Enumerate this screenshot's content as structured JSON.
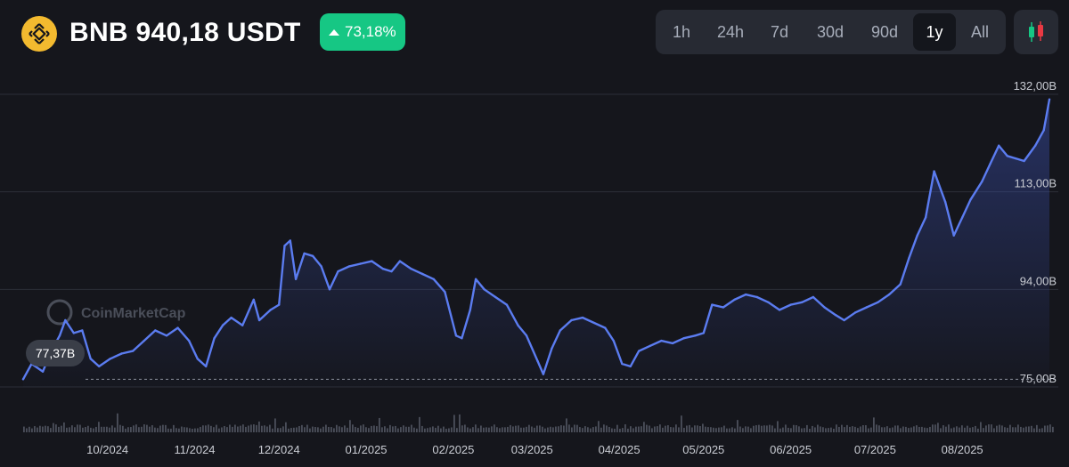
{
  "header": {
    "coin_symbol": "BNB",
    "title": "BNB 940,18 USDT",
    "change": "73,18%",
    "change_color": "#16c784",
    "brand_color": "#f3ba2f"
  },
  "time_ranges": [
    {
      "label": "1h",
      "active": false
    },
    {
      "label": "24h",
      "active": false
    },
    {
      "label": "7d",
      "active": false
    },
    {
      "label": "30d",
      "active": false
    },
    {
      "label": "90d",
      "active": false
    },
    {
      "label": "1y",
      "active": true
    },
    {
      "label": "All",
      "active": false
    }
  ],
  "candle_toggle_icon": "candlestick-icon",
  "watermark": "CoinMarketCap",
  "current_label": "77,37B",
  "chart_data": {
    "type": "area",
    "title": "",
    "xlabel": "",
    "ylabel": "",
    "y_unit": "B",
    "ylim": [
      75,
      132
    ],
    "y_ticks": [
      {
        "value": 132,
        "label": "132,00B"
      },
      {
        "value": 113,
        "label": "113,00B"
      },
      {
        "value": 94,
        "label": "94,00B"
      },
      {
        "value": 75,
        "label": "75,00B"
      }
    ],
    "grid": true,
    "line_color": "#5b7cf0",
    "x_ticks": [
      {
        "date": "2024-10-01",
        "label": "10/2024"
      },
      {
        "date": "2024-11-01",
        "label": "11/2024"
      },
      {
        "date": "2024-12-01",
        "label": "12/2024"
      },
      {
        "date": "2025-01-01",
        "label": "01/2025"
      },
      {
        "date": "2025-02-01",
        "label": "02/2025"
      },
      {
        "date": "2025-03-01",
        "label": "03/2025"
      },
      {
        "date": "2025-04-01",
        "label": "04/2025"
      },
      {
        "date": "2025-05-01",
        "label": "05/2025"
      },
      {
        "date": "2025-06-01",
        "label": "06/2025"
      },
      {
        "date": "2025-07-01",
        "label": "07/2025"
      },
      {
        "date": "2025-08-01",
        "label": "08/2025"
      }
    ],
    "series": [
      {
        "values": [
          [
            "2024-09-01",
            76.5
          ],
          [
            "2024-09-04",
            79.5
          ],
          [
            "2024-09-08",
            78.0
          ],
          [
            "2024-09-11",
            82.0
          ],
          [
            "2024-09-14",
            85.0
          ],
          [
            "2024-09-16",
            88.0
          ],
          [
            "2024-09-19",
            85.5
          ],
          [
            "2024-09-22",
            86.0
          ],
          [
            "2024-09-25",
            80.5
          ],
          [
            "2024-09-28",
            79.0
          ],
          [
            "2024-10-02",
            80.5
          ],
          [
            "2024-10-06",
            81.5
          ],
          [
            "2024-10-10",
            82.0
          ],
          [
            "2024-10-14",
            84.0
          ],
          [
            "2024-10-18",
            86.0
          ],
          [
            "2024-10-22",
            85.0
          ],
          [
            "2024-10-26",
            86.5
          ],
          [
            "2024-10-30",
            84.0
          ],
          [
            "2024-11-02",
            80.5
          ],
          [
            "2024-11-05",
            79.0
          ],
          [
            "2024-11-08",
            84.5
          ],
          [
            "2024-11-11",
            87.0
          ],
          [
            "2024-11-14",
            88.5
          ],
          [
            "2024-11-18",
            87.0
          ],
          [
            "2024-11-22",
            92.0
          ],
          [
            "2024-11-24",
            88.0
          ],
          [
            "2024-11-28",
            90.0
          ],
          [
            "2024-12-01",
            91.0
          ],
          [
            "2024-12-03",
            102.5
          ],
          [
            "2024-12-05",
            103.5
          ],
          [
            "2024-12-07",
            96.0
          ],
          [
            "2024-12-10",
            101.0
          ],
          [
            "2024-12-13",
            100.5
          ],
          [
            "2024-12-16",
            98.5
          ],
          [
            "2024-12-19",
            94.0
          ],
          [
            "2024-12-22",
            97.5
          ],
          [
            "2024-12-26",
            98.5
          ],
          [
            "2024-12-30",
            99.0
          ],
          [
            "2025-01-03",
            99.5
          ],
          [
            "2025-01-07",
            98.0
          ],
          [
            "2025-01-10",
            97.5
          ],
          [
            "2025-01-13",
            99.5
          ],
          [
            "2025-01-17",
            98.0
          ],
          [
            "2025-01-21",
            97.0
          ],
          [
            "2025-01-25",
            96.0
          ],
          [
            "2025-01-29",
            93.5
          ],
          [
            "2025-02-02",
            85.0
          ],
          [
            "2025-02-04",
            84.5
          ],
          [
            "2025-02-07",
            90.0
          ],
          [
            "2025-02-09",
            96.0
          ],
          [
            "2025-02-12",
            94.0
          ],
          [
            "2025-02-16",
            92.5
          ],
          [
            "2025-02-20",
            91.0
          ],
          [
            "2025-02-24",
            87.0
          ],
          [
            "2025-02-27",
            85.0
          ],
          [
            "2025-03-03",
            80.0
          ],
          [
            "2025-03-05",
            77.5
          ],
          [
            "2025-03-08",
            82.5
          ],
          [
            "2025-03-11",
            86.0
          ],
          [
            "2025-03-15",
            88.0
          ],
          [
            "2025-03-19",
            88.5
          ],
          [
            "2025-03-23",
            87.5
          ],
          [
            "2025-03-27",
            86.5
          ],
          [
            "2025-03-30",
            84.0
          ],
          [
            "2025-04-02",
            79.5
          ],
          [
            "2025-04-05",
            79.0
          ],
          [
            "2025-04-08",
            82.0
          ],
          [
            "2025-04-12",
            83.0
          ],
          [
            "2025-04-16",
            84.0
          ],
          [
            "2025-04-20",
            83.5
          ],
          [
            "2025-04-24",
            84.5
          ],
          [
            "2025-04-28",
            85.0
          ],
          [
            "2025-05-01",
            85.5
          ],
          [
            "2025-05-04",
            91.0
          ],
          [
            "2025-05-08",
            90.5
          ],
          [
            "2025-05-12",
            92.0
          ],
          [
            "2025-05-16",
            93.0
          ],
          [
            "2025-05-20",
            92.5
          ],
          [
            "2025-05-24",
            91.5
          ],
          [
            "2025-05-28",
            90.0
          ],
          [
            "2025-06-01",
            91.0
          ],
          [
            "2025-06-05",
            91.5
          ],
          [
            "2025-06-09",
            92.5
          ],
          [
            "2025-06-13",
            90.5
          ],
          [
            "2025-06-17",
            89.0
          ],
          [
            "2025-06-20",
            88.0
          ],
          [
            "2025-06-24",
            89.5
          ],
          [
            "2025-06-28",
            90.5
          ],
          [
            "2025-07-02",
            91.5
          ],
          [
            "2025-07-06",
            93.0
          ],
          [
            "2025-07-10",
            95.0
          ],
          [
            "2025-07-13",
            100.0
          ],
          [
            "2025-07-16",
            104.5
          ],
          [
            "2025-07-19",
            108.0
          ],
          [
            "2025-07-22",
            117.0
          ],
          [
            "2025-07-26",
            111.0
          ],
          [
            "2025-07-29",
            104.5
          ],
          [
            "2025-08-01",
            108.0
          ],
          [
            "2025-08-04",
            111.5
          ],
          [
            "2025-08-08",
            115.0
          ],
          [
            "2025-08-11",
            118.5
          ],
          [
            "2025-08-14",
            122.0
          ],
          [
            "2025-08-17",
            120.0
          ],
          [
            "2025-08-20",
            119.5
          ],
          [
            "2025-08-23",
            119.0
          ],
          [
            "2025-08-27",
            122.0
          ],
          [
            "2025-08-30",
            125.0
          ],
          [
            "2025-09-01",
            131.0
          ]
        ]
      }
    ]
  }
}
